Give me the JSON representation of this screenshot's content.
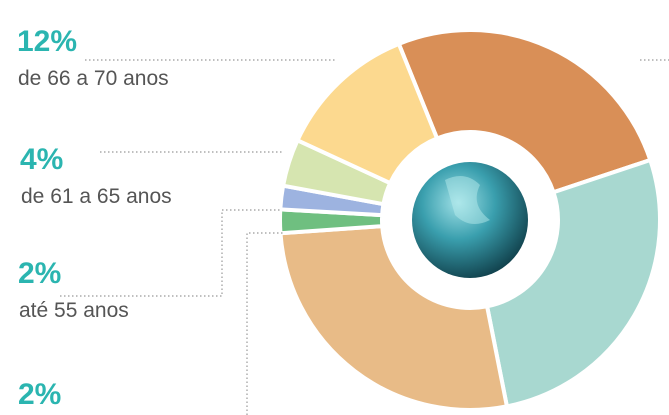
{
  "chart_data": {
    "type": "donut",
    "categories": [
      null,
      null,
      null,
      null,
      "até 55 anos",
      "de 61 a 65 anos",
      "de 66 a 70 anos"
    ],
    "values": [
      26,
      27,
      27,
      2,
      2,
      4,
      12
    ],
    "value_labels": [
      null,
      null,
      null,
      "2%",
      "2%",
      "4%",
      "12%"
    ],
    "colors": [
      "#d98f57",
      "#a8d8d0",
      "#e8bb87",
      "#6fbf80",
      "#9db3e0",
      "#d6e5b0",
      "#fcd98f"
    ]
  }
}
